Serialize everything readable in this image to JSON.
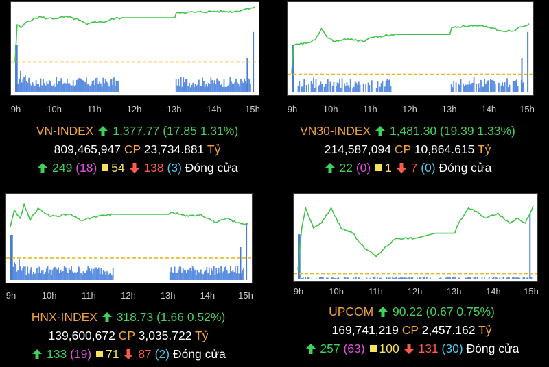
{
  "colors": {
    "line": "#3fc44a",
    "reference": "#e8b824",
    "volume": "#5b8ee0",
    "volume_spike": "#4a7dd0",
    "name": "#f2a33a",
    "up": "#3fd25a",
    "down": "#ff5a4a",
    "ceiling": "#e050e0",
    "unchanged": "#f5e25a",
    "floor": "#4fc8ea"
  },
  "icons": {
    "up": "arrow-up-icon",
    "down": "arrow-down-icon",
    "unchanged": "square-icon"
  },
  "chart_data": [
    {
      "type": "line",
      "x_ticks": [
        "9h",
        "10h",
        "11h",
        "12h",
        "13h",
        "14h",
        "15h"
      ],
      "series": [
        {
          "values": [
            [
              9.0,
              1360.0
            ],
            [
              9.05,
              1372.0
            ],
            [
              9.15,
              1371.0
            ],
            [
              9.3,
              1373.0
            ],
            [
              9.6,
              1374.5
            ],
            [
              9.8,
              1374.0
            ],
            [
              10.0,
              1374.0
            ],
            [
              10.3,
              1374.5
            ],
            [
              10.6,
              1373.5
            ],
            [
              10.8,
              1372.0
            ],
            [
              11.0,
              1373.0
            ],
            [
              11.2,
              1372.8
            ],
            [
              11.5,
              1374.0
            ],
            [
              11.7,
              1374.2
            ],
            [
              13.0,
              1374.2
            ],
            [
              13.05,
              1376.0
            ],
            [
              13.5,
              1376.0
            ],
            [
              14.0,
              1376.3
            ],
            [
              14.5,
              1376.2
            ],
            [
              14.75,
              1377.0
            ],
            [
              15.0,
              1377.77
            ]
          ]
        }
      ],
      "reference": 1359.92,
      "volume_pattern": "morning-and-afternoon",
      "ylim": [
        1350,
        1378
      ],
      "index": {
        "name": "VN-INDEX",
        "value": "1,377.77",
        "change": "(17.85 1.31%)",
        "volume": "809,465,947",
        "cp_label": "CP",
        "turnover": "23,734.881",
        "unit": "Tỷ",
        "advancers": "249",
        "ceiling": "(18)",
        "unchanged": "54",
        "decliners": "138",
        "floor": "(3)",
        "status": "Đóng cửa"
      }
    },
    {
      "type": "line",
      "x_ticks": [
        "9h",
        "10h",
        "11h",
        "12h",
        "13h",
        "14h",
        "15h"
      ],
      "series": [
        {
          "values": [
            [
              9.0,
              1462.2
            ],
            [
              9.05,
              1473.0
            ],
            [
              9.2,
              1473.5
            ],
            [
              9.4,
              1474.0
            ],
            [
              9.6,
              1475.0
            ],
            [
              9.75,
              1479.5
            ],
            [
              9.9,
              1476.0
            ],
            [
              10.1,
              1474.5
            ],
            [
              10.5,
              1475.5
            ],
            [
              10.8,
              1474.5
            ],
            [
              11.0,
              1476.0
            ],
            [
              11.3,
              1476.5
            ],
            [
              11.5,
              1477.0
            ],
            [
              11.7,
              1477.2
            ],
            [
              13.0,
              1477.2
            ],
            [
              13.05,
              1480.0
            ],
            [
              13.5,
              1480.5
            ],
            [
              14.0,
              1480.0
            ],
            [
              14.3,
              1478.5
            ],
            [
              14.6,
              1478.5
            ],
            [
              14.75,
              1480.0
            ],
            [
              15.0,
              1481.3
            ]
          ]
        }
      ],
      "reference": 1461.91,
      "volume_pattern": "sparse",
      "ylim": [
        1455,
        1488
      ],
      "index": {
        "name": "VN30-INDEX",
        "value": "1,481.30",
        "change": "(19.39 1.33%)",
        "volume": "214,587,094",
        "cp_label": "CP",
        "turnover": "10,864.615",
        "unit": "Tỷ",
        "advancers": "22",
        "ceiling": "(0)",
        "unchanged": "1",
        "decliners": "7",
        "floor": "(0)",
        "status": "Đóng cửa"
      }
    },
    {
      "type": "line",
      "x_ticks": [
        "9h",
        "10h",
        "11h",
        "12h",
        "13h",
        "14h",
        "15h"
      ],
      "series": [
        {
          "values": [
            [
              9.0,
              318.6
            ],
            [
              9.1,
              319.4
            ],
            [
              9.25,
              319.0
            ],
            [
              9.35,
              319.7
            ],
            [
              9.5,
              318.9
            ],
            [
              9.7,
              319.5
            ],
            [
              10.0,
              319.1
            ],
            [
              10.5,
              319.2
            ],
            [
              10.8,
              318.9
            ],
            [
              11.2,
              319.1
            ],
            [
              11.6,
              319.2
            ],
            [
              13.0,
              319.2
            ],
            [
              13.1,
              319.3
            ],
            [
              13.5,
              319.1
            ],
            [
              13.8,
              319.2
            ],
            [
              14.0,
              319.0
            ],
            [
              14.2,
              318.8
            ],
            [
              14.5,
              319.0
            ],
            [
              14.7,
              318.8
            ],
            [
              15.0,
              318.73
            ]
          ]
        }
      ],
      "reference": 317.07,
      "volume_pattern": "morning-and-afternoon",
      "ylim": [
        316.0,
        320.0
      ],
      "index": {
        "name": "HNX-INDEX",
        "value": "318.73",
        "change": "(1.66 0.52%)",
        "volume": "139,600,672",
        "cp_label": "CP",
        "turnover": "3,035.722",
        "unit": "Tỷ",
        "advancers": "133",
        "ceiling": "(19)",
        "unchanged": "71",
        "decliners": "87",
        "floor": "(2)",
        "status": "Đóng cửa"
      }
    },
    {
      "type": "line",
      "x_ticks": [
        "9h",
        "10h",
        "11h",
        "12h",
        "13h",
        "14h",
        "15h"
      ],
      "series": [
        {
          "values": [
            [
              9.0,
              89.58
            ],
            [
              9.1,
              90.0
            ],
            [
              9.2,
              90.2
            ],
            [
              9.4,
              90.0
            ],
            [
              9.6,
              90.05
            ],
            [
              9.85,
              90.2
            ],
            [
              10.1,
              90.0
            ],
            [
              10.4,
              89.95
            ],
            [
              10.7,
              89.8
            ],
            [
              10.9,
              89.75
            ],
            [
              11.0,
              89.72
            ],
            [
              11.2,
              89.8
            ],
            [
              11.5,
              89.9
            ],
            [
              12.0,
              89.9
            ],
            [
              12.5,
              89.95
            ],
            [
              13.0,
              89.95
            ],
            [
              13.1,
              90.05
            ],
            [
              13.35,
              90.2
            ],
            [
              13.6,
              90.15
            ],
            [
              13.8,
              90.1
            ],
            [
              14.1,
              90.15
            ],
            [
              14.4,
              90.05
            ],
            [
              14.6,
              90.1
            ],
            [
              14.8,
              90.05
            ],
            [
              15.0,
              90.22
            ]
          ]
        }
      ],
      "reference": 89.55,
      "volume_pattern": "minimal",
      "ylim": [
        89.5,
        90.3
      ],
      "index": {
        "name": "UPCOM",
        "value": "90.22",
        "change": "(0.67 0.75%)",
        "volume": "169,741,219",
        "cp_label": "CP",
        "turnover": "2,457.162",
        "unit": "Tỷ",
        "advancers": "257",
        "ceiling": "(63)",
        "unchanged": "100",
        "decliners": "131",
        "floor": "(30)",
        "status": "Đóng cửa"
      }
    }
  ]
}
